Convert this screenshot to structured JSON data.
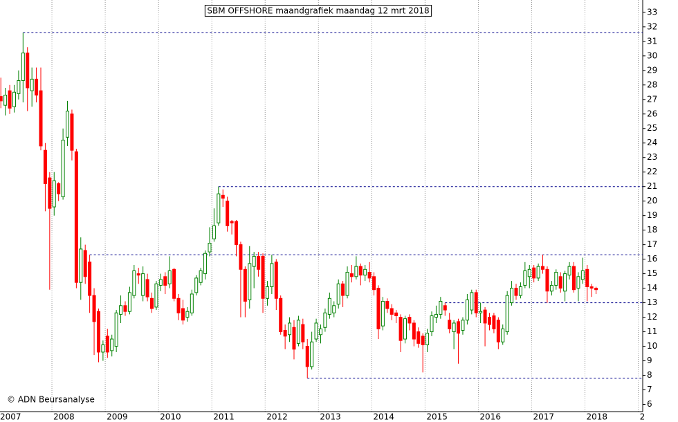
{
  "chart_data": {
    "type": "candlestick",
    "title": "SBM OFFSHORE maandgrafiek maandag 12 mrt 2018",
    "source": "© ADN Beursanalyse",
    "categories": [
      "2007",
      null,
      null,
      null,
      null,
      null,
      null,
      null,
      null,
      null,
      null,
      null,
      "2008",
      null,
      null,
      null,
      null,
      null,
      null,
      null,
      null,
      null,
      null,
      null,
      "2009",
      null,
      null,
      null,
      null,
      null,
      null,
      null,
      null,
      null,
      null,
      null,
      "2010",
      null,
      null,
      null,
      null,
      null,
      null,
      null,
      null,
      null,
      null,
      null,
      "2011",
      null,
      null,
      null,
      null,
      null,
      null,
      null,
      null,
      null,
      null,
      null,
      "2012",
      null,
      null,
      null,
      null,
      null,
      null,
      null,
      null,
      null,
      null,
      null,
      "2013",
      null,
      null,
      null,
      null,
      null,
      null,
      null,
      null,
      null,
      null,
      null,
      "2014",
      null,
      null,
      null,
      null,
      null,
      null,
      null,
      null,
      null,
      null,
      null,
      "2015",
      null,
      null,
      null,
      null,
      null,
      null,
      null,
      null,
      null,
      null,
      null,
      "2016",
      null,
      null,
      null,
      null,
      null,
      null,
      null,
      null,
      null,
      null,
      null,
      "2017",
      null,
      null,
      null,
      null,
      null,
      null,
      null,
      null,
      null,
      null,
      null,
      "2018",
      null,
      null,
      null,
      null,
      null,
      null,
      null,
      null,
      null,
      null,
      null,
      "2"
    ],
    "open": [
      27.2,
      26.6,
      27.6,
      26.5,
      27.4,
      28.3,
      30.2,
      27.6,
      28.4,
      27.6,
      23.5,
      21.6,
      19.6,
      21.2,
      20.3,
      24.4,
      26.0,
      23.4,
      14.4,
      16.6,
      15.8,
      13.5,
      12.4,
      9.6,
      10.7,
      9.7,
      10.0,
      12.2,
      12.8,
      12.4,
      13.5,
      15.0,
      13.5,
      14.6,
      13.3,
      12.7,
      14.2,
      14.8,
      14.3,
      15.3,
      13.3,
      12.6,
      12.0,
      12.3,
      13.7,
      14.4,
      15.0,
      16.5,
      17.4,
      18.5,
      20.4,
      20.0,
      18.6,
      18.6,
      17.0,
      15.3,
      13.2,
      15.5,
      16.2,
      16.2,
      13.3,
      14.1,
      15.8,
      13.3,
      11.1,
      10.8,
      11.3,
      10.2,
      11.5,
      10.0,
      8.6,
      10.5,
      10.8,
      11.3,
      12.2,
      12.3,
      12.9,
      14.3,
      13.5,
      15.0,
      14.8,
      15.5,
      14.9,
      15.1,
      14.8,
      14.0,
      11.4,
      13.1,
      12.6,
      12.3,
      12.0,
      10.5,
      12.0,
      11.6,
      11.0,
      10.7,
      10.1,
      11.0,
      12.0,
      12.2,
      12.8,
      11.8,
      11.0,
      11.7,
      11.1,
      11.8,
      12.5,
      13.7,
      12.3,
      12.5,
      12.0,
      12.1,
      11.8,
      10.3,
      11.0,
      13.0,
      14.0,
      13.5,
      14.2,
      14.8,
      15.4,
      14.7,
      15.5,
      15.3,
      13.8,
      14.2,
      14.8,
      13.8,
      14.9,
      15.5,
      14.0,
      14.6,
      15.3,
      14.1,
      14.0,
      null,
      null,
      null,
      null,
      null,
      null,
      null,
      null,
      null,
      null
    ],
    "high": [
      28.5,
      27.8,
      28.0,
      28.0,
      29.0,
      31.6,
      30.6,
      29.2,
      29.2,
      29.2,
      24.0,
      22.0,
      22.0,
      21.3,
      25.0,
      26.9,
      26.3,
      23.6,
      17.5,
      17.0,
      16.3,
      14.0,
      12.6,
      10.4,
      11.2,
      10.8,
      12.5,
      13.5,
      13.1,
      14.1,
      15.6,
      15.4,
      15.5,
      15.0,
      13.7,
      14.5,
      15.0,
      15.1,
      16.2,
      15.4,
      13.6,
      13.2,
      12.7,
      13.9,
      14.9,
      15.4,
      16.6,
      18.2,
      19.5,
      21.0,
      20.8,
      20.3,
      18.7,
      18.7,
      17.2,
      15.5,
      16.9,
      16.5,
      16.5,
      16.4,
      14.5,
      16.3,
      16.0,
      13.5,
      11.5,
      12.0,
      11.8,
      12.1,
      11.9,
      10.5,
      11.0,
      11.9,
      11.5,
      12.6,
      13.7,
      13.1,
      14.6,
      14.5,
      15.5,
      15.6,
      16.2,
      15.7,
      15.6,
      15.8,
      15.1,
      14.2,
      13.4,
      13.3,
      12.9,
      12.5,
      12.2,
      12.1,
      12.2,
      11.8,
      11.3,
      10.9,
      11.2,
      12.4,
      12.8,
      13.4,
      13.0,
      12.3,
      11.8,
      11.9,
      12.0,
      13.6,
      13.9,
      13.9,
      13.0,
      12.7,
      12.3,
      12.3,
      12.0,
      11.5,
      13.8,
      14.5,
      14.3,
      14.4,
      15.8,
      15.6,
      15.6,
      15.7,
      16.3,
      15.5,
      14.5,
      15.3,
      15.1,
      15.2,
      15.8,
      15.8,
      15.1,
      16.1,
      15.6,
      14.3,
      14.1,
      null,
      null,
      null,
      null,
      null,
      null,
      null,
      null,
      null,
      null
    ],
    "low": [
      26.4,
      25.9,
      26.0,
      26.1,
      27.0,
      26.8,
      26.2,
      26.5,
      26.8,
      23.5,
      19.3,
      13.9,
      19.0,
      20.0,
      20.1,
      23.8,
      22.8,
      14.0,
      13.2,
      14.3,
      12.3,
      9.4,
      8.9,
      9.0,
      9.2,
      9.3,
      9.6,
      11.6,
      12.1,
      12.2,
      13.3,
      14.3,
      13.1,
      13.1,
      12.3,
      12.5,
      13.8,
      13.6,
      14.0,
      13.1,
      11.8,
      11.5,
      11.7,
      12.1,
      13.5,
      14.2,
      14.6,
      16.2,
      17.2,
      18.3,
      19.6,
      17.9,
      17.7,
      16.2,
      12.0,
      12.0,
      12.6,
      14.0,
      14.8,
      12.3,
      12.8,
      13.6,
      12.5,
      10.8,
      9.8,
      10.3,
      9.1,
      10.0,
      9.8,
      7.8,
      8.4,
      10.3,
      10.2,
      11.0,
      11.9,
      12.0,
      12.6,
      12.7,
      13.3,
      14.4,
      14.6,
      14.2,
      14.5,
      14.4,
      13.5,
      10.5,
      11.1,
      12.3,
      11.8,
      11.6,
      9.6,
      10.2,
      11.1,
      10.0,
      9.9,
      8.2,
      9.6,
      10.7,
      11.6,
      11.9,
      12.1,
      10.9,
      9.8,
      8.8,
      10.8,
      11.5,
      12.2,
      12.0,
      11.6,
      10.0,
      11.1,
      10.9,
      9.8,
      10.1,
      10.8,
      12.8,
      13.2,
      13.3,
      14.0,
      14.0,
      14.4,
      14.5,
      15.0,
      13.0,
      13.5,
      13.9,
      13.7,
      13.1,
      14.6,
      13.7,
      13.1,
      14.3,
      13.1,
      13.4,
      13.6,
      null,
      null,
      null,
      null,
      null,
      null,
      null,
      null,
      null,
      null
    ],
    "close": [
      26.9,
      27.3,
      26.4,
      27.5,
      28.3,
      30.2,
      27.8,
      28.4,
      27.3,
      23.8,
      21.2,
      19.5,
      21.4,
      20.5,
      24.2,
      26.2,
      23.5,
      14.4,
      16.7,
      14.8,
      13.5,
      11.7,
      9.6,
      10.1,
      9.6,
      10.5,
      12.3,
      12.8,
      12.4,
      13.7,
      15.2,
      14.9,
      15.0,
      13.4,
      12.6,
      14.3,
      14.6,
      14.2,
      15.2,
      13.3,
      12.3,
      11.8,
      12.4,
      13.6,
      14.7,
      15.2,
      16.4,
      17.1,
      18.3,
      20.5,
      20.2,
      18.3,
      18.5,
      17.0,
      15.3,
      13.1,
      15.7,
      16.2,
      15.3,
      13.3,
      14.1,
      15.7,
      13.3,
      11.0,
      10.7,
      11.6,
      9.8,
      11.8,
      10.3,
      8.6,
      10.3,
      11.6,
      11.2,
      12.3,
      13.3,
      12.8,
      14.3,
      13.5,
      15.1,
      14.8,
      15.5,
      14.9,
      15.3,
      14.7,
      13.9,
      11.2,
      13.1,
      12.6,
      12.2,
      12.1,
      10.4,
      11.9,
      11.6,
      10.5,
      10.2,
      10.1,
      10.9,
      12.1,
      12.2,
      13.1,
      12.5,
      11.2,
      11.6,
      10.9,
      11.8,
      13.2,
      13.7,
      12.3,
      12.4,
      11.6,
      11.5,
      11.2,
      10.3,
      11.2,
      13.5,
      14.0,
      13.5,
      14.1,
      15.2,
      15.3,
      14.7,
      15.5,
      15.3,
      13.8,
      14.2,
      15.1,
      14.0,
      15.0,
      15.5,
      13.9,
      14.8,
      15.2,
      14.1,
      14.0,
      13.9,
      null,
      null,
      null,
      null,
      null,
      null,
      null,
      null,
      null,
      null
    ],
    "up_color": "#008000",
    "down_color": "#ff0000",
    "reference_lines": [
      31.6,
      21.0,
      16.3,
      13.0,
      7.8
    ],
    "reference_color": "#00008b",
    "ylim": [
      5.5,
      33.85
    ],
    "yticks": [
      6,
      7,
      8,
      9,
      10,
      11,
      12,
      13,
      14,
      15,
      16,
      17,
      18,
      19,
      20,
      21,
      22,
      23,
      24,
      25,
      26,
      27,
      28,
      29,
      30,
      31,
      32,
      33
    ],
    "grid": true
  }
}
